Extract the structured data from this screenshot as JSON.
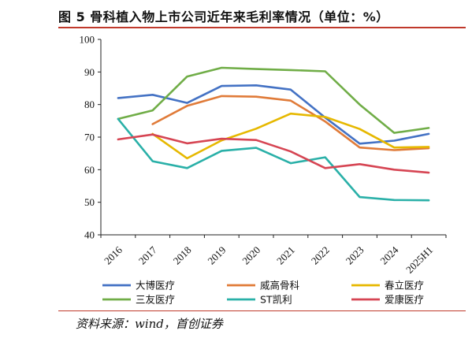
{
  "title": "图 5  骨科植入物上市公司近年来毛利率情况（单位：%）",
  "source": "资料来源：wind，首创证券",
  "colors": {
    "rule": "#c0392b"
  },
  "chart_data": {
    "type": "line",
    "categories": [
      "2016",
      "2017",
      "2018",
      "2019",
      "2020",
      "2021",
      "2022",
      "2023",
      "2024",
      "2025H1"
    ],
    "ylim": [
      40,
      100
    ],
    "yticks": [
      40,
      50,
      60,
      70,
      80,
      90,
      100
    ],
    "grid": false,
    "legend_position": "bottom",
    "series": [
      {
        "name": "大博医疗",
        "color": "#4472c4",
        "values": [
          82.0,
          83.0,
          80.5,
          85.7,
          85.9,
          84.6,
          76.0,
          68.0,
          68.9,
          71.0
        ]
      },
      {
        "name": "威高骨科",
        "color": "#e07b39",
        "values": [
          null,
          74.0,
          79.6,
          82.6,
          82.4,
          81.2,
          74.8,
          66.8,
          66.0,
          66.6
        ]
      },
      {
        "name": "春立医疗",
        "color": "#e6b800",
        "values": [
          null,
          71.0,
          63.5,
          69.0,
          72.6,
          77.2,
          76.2,
          72.5,
          66.8,
          67.0
        ]
      },
      {
        "name": "三友医疗",
        "color": "#70ad47",
        "values": [
          75.6,
          78.2,
          88.6,
          91.3,
          90.9,
          90.6,
          90.2,
          80.0,
          71.3,
          72.8
        ]
      },
      {
        "name": "ST凯利",
        "color": "#2ab0a8",
        "values": [
          75.6,
          62.6,
          60.5,
          65.8,
          66.7,
          62.0,
          63.8,
          51.6,
          50.7,
          50.6
        ]
      },
      {
        "name": "爱康医疗",
        "color": "#d64553",
        "values": [
          69.3,
          70.8,
          68.1,
          69.5,
          69.1,
          65.6,
          60.5,
          61.7,
          60.0,
          59.1
        ]
      }
    ]
  }
}
